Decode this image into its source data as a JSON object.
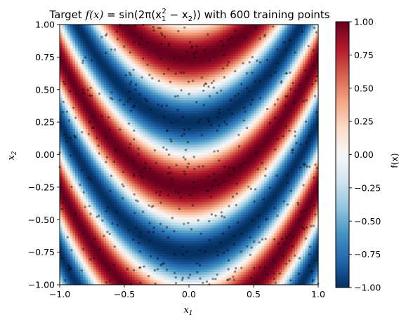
{
  "chart_data": {
    "type": "heatmap",
    "title_parts": {
      "lead": "Target ",
      "fx": "f(x)",
      "mid": " = sin(2π(x",
      "sq_sub": "1",
      "sq_sup": "2",
      "minus": " − x",
      "minus_sub": "2",
      "close": "))",
      "tail": " with 600 training points"
    },
    "xlabel_base": "x",
    "xlabel_sub": "1",
    "ylabel_base": "x",
    "ylabel_sub": "2",
    "xlim": [
      -1,
      1
    ],
    "ylim": [
      -1,
      1
    ],
    "x_ticks": [
      -1.0,
      -0.5,
      0.0,
      0.5,
      1.0
    ],
    "x_tick_labels": [
      "−1.0",
      "−0.5",
      "0.0",
      "0.5",
      "1.0"
    ],
    "y_ticks": [
      -1.0,
      -0.75,
      -0.5,
      -0.25,
      0.0,
      0.25,
      0.5,
      0.75,
      1.0
    ],
    "y_tick_labels": [
      "−1.00",
      "−0.75",
      "−0.50",
      "−0.25",
      "0.00",
      "0.25",
      "0.50",
      "0.75",
      "1.00"
    ],
    "function": "sin(2*pi*(x1^2 - x2))",
    "grid_resolution": 100,
    "colormap": "RdBu_r",
    "colormap_stops": [
      "#053061",
      "#2166ac",
      "#4393c3",
      "#92c5de",
      "#d1e5f0",
      "#f7f7f7",
      "#fddbc7",
      "#f4a582",
      "#d6604d",
      "#b2182b",
      "#67001f"
    ],
    "vmin": -1.0,
    "vmax": 1.0,
    "colorbar_label": "f(x)",
    "colorbar_ticks": [
      -1.0,
      -0.75,
      -0.5,
      -0.25,
      0.0,
      0.25,
      0.5,
      0.75,
      1.0
    ],
    "colorbar_tick_labels": [
      "−1.00",
      "−0.75",
      "−0.50",
      "−0.25",
      "0.00",
      "0.25",
      "0.50",
      "0.75",
      "1.00"
    ],
    "scatter": {
      "count": 600,
      "color": "#000000",
      "alpha": 0.45,
      "distribution": "uniform on [-1,1] x [-1,1]"
    }
  }
}
